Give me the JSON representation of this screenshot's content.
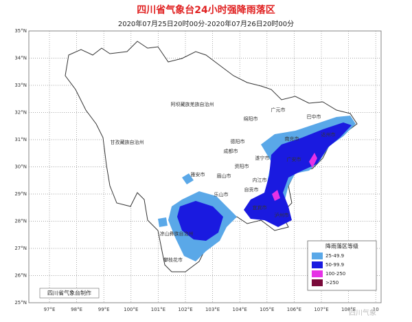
{
  "header": {
    "title": "四川省气象台24小时强降雨落区",
    "subtitle": "2020年07月25日20时00分-2020年07月26日20时00分"
  },
  "lat_labels": [
    "35°N",
    "34°N",
    "33°N",
    "32°N",
    "31°N",
    "30°N",
    "29°N",
    "28°N",
    "27°N",
    "26°N",
    "25°N"
  ],
  "lon_labels": [
    "97°E",
    "98°E",
    "99°E",
    "100°E",
    "101°E",
    "102°E",
    "103°E",
    "104°E",
    "105°E",
    "106°E",
    "107°E",
    "108°E",
    "10"
  ],
  "cities": [
    "阿坝藏族羌族自治州",
    "甘孜藏族自治州",
    "广元市",
    "巴中市",
    "绵阳市",
    "达州市",
    "南充市",
    "德阳市",
    "成都市",
    "遂宁市",
    "广安市",
    "雅安市",
    "眉山市",
    "资阳市",
    "内江市",
    "乐山市",
    "自贡市",
    "宜宾市",
    "泸州市",
    "凉山彝族自治州",
    "攀枝花市"
  ],
  "legend": {
    "title": "降雨落区等级",
    "items": [
      {
        "label": "25-49.9",
        "color": "#5aa8e8"
      },
      {
        "label": "50-99.9",
        "color": "#1a1ae0"
      },
      {
        "label": "100-250",
        "color": "#e632e6"
      },
      {
        "label": ">250",
        "color": "#7a0a3a"
      }
    ]
  },
  "footer": "四川省气象台制作",
  "watermark": "四川气象"
}
